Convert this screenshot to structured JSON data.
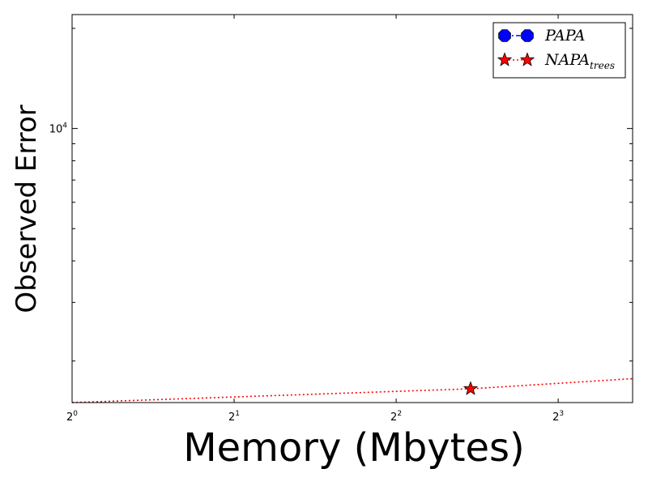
{
  "chart_data": {
    "type": "line",
    "title": "",
    "xlabel": "Memory (Mbytes)",
    "ylabel": "Observed Error",
    "xscale": "log2",
    "yscale": "log10",
    "xlim": [
      1,
      11
    ],
    "ylim": [
      1500,
      22000
    ],
    "x_ticks": [
      {
        "value": 1,
        "base": "2",
        "exp": "0"
      },
      {
        "value": 2,
        "base": "2",
        "exp": "1"
      },
      {
        "value": 4,
        "base": "2",
        "exp": "2"
      },
      {
        "value": 8,
        "base": "2",
        "exp": "3"
      }
    ],
    "y_ticks": [
      {
        "value": 10000,
        "base": "10",
        "exp": "4"
      }
    ],
    "legend_position": "top-right",
    "series": [
      {
        "name": "PAPA",
        "name_base": "PAPA",
        "name_sub": "",
        "marker": "octagon",
        "line_style": "dashdot",
        "color": "#0000ff",
        "x": [],
        "y": []
      },
      {
        "name": "NAPA_trees",
        "name_base": "NAPA",
        "name_sub": "trees",
        "marker": "star",
        "line_style": "dotted",
        "color": "#ff0000",
        "x": [
          1,
          5.5,
          11
        ],
        "y": [
          1500,
          1650,
          1770
        ],
        "marker_indices": [
          1
        ]
      }
    ]
  }
}
